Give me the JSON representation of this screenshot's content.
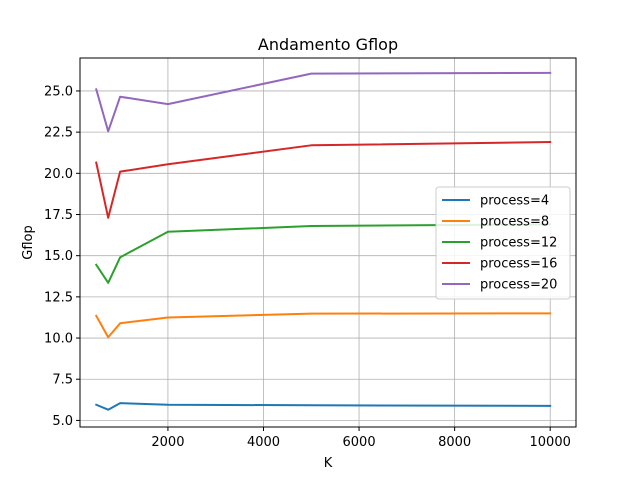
{
  "chart_data": {
    "type": "line",
    "title": "Andamento Gflop",
    "xlabel": "K",
    "ylabel": "Gflop",
    "xlim": [
      160,
      10540
    ],
    "ylim": [
      4.6,
      27.0
    ],
    "xticks": [
      2000,
      4000,
      6000,
      8000,
      10000
    ],
    "xtick_labels": [
      "2000",
      "4000",
      "6000",
      "8000",
      "10000"
    ],
    "yticks": [
      5.0,
      7.5,
      10.0,
      12.5,
      15.0,
      17.5,
      20.0,
      22.5,
      25.0
    ],
    "ytick_labels": [
      "5.0",
      "7.5",
      "10.0",
      "12.5",
      "15.0",
      "17.5",
      "20.0",
      "22.5",
      "25.0"
    ],
    "grid": true,
    "legend_position": "center-right",
    "x": [
      500,
      750,
      1000,
      2000,
      5000,
      10000
    ],
    "series": [
      {
        "name": "process=4",
        "color": "#1f77b4",
        "values": [
          5.95,
          5.65,
          6.05,
          5.95,
          5.92,
          5.88
        ]
      },
      {
        "name": "process=8",
        "color": "#ff7f0e",
        "values": [
          11.35,
          10.05,
          10.9,
          11.25,
          11.48,
          11.5
        ]
      },
      {
        "name": "process=12",
        "color": "#2ca02c",
        "values": [
          14.45,
          13.35,
          14.9,
          16.45,
          16.8,
          16.9
        ]
      },
      {
        "name": "process=16",
        "color": "#d62728",
        "values": [
          20.65,
          17.3,
          20.1,
          20.55,
          21.7,
          21.9
        ]
      },
      {
        "name": "process=20",
        "color": "#9467bd",
        "values": [
          25.1,
          22.55,
          24.65,
          24.2,
          26.05,
          26.1
        ]
      }
    ]
  }
}
